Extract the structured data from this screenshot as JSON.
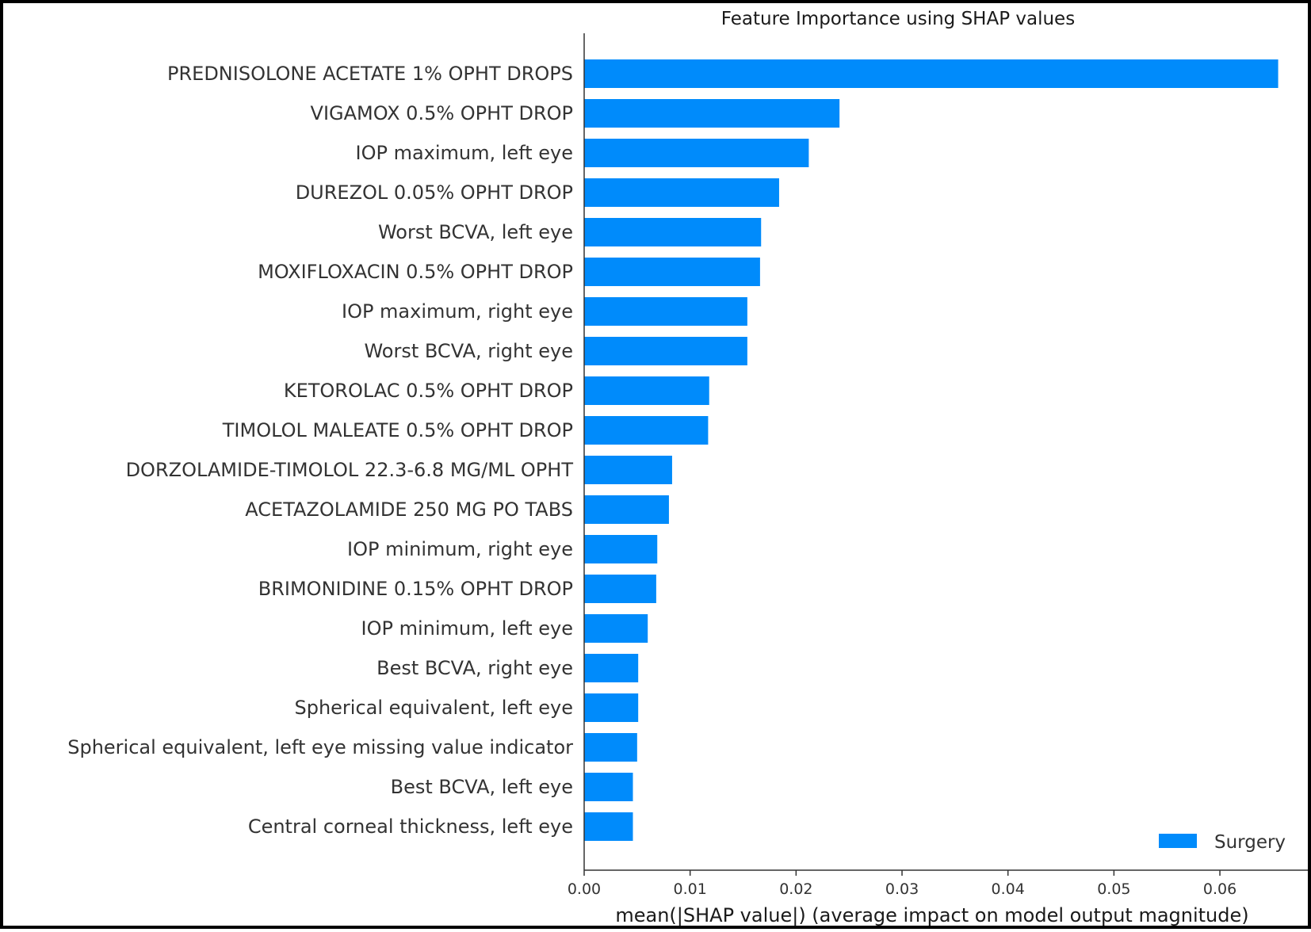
{
  "chart_data": {
    "type": "bar",
    "orientation": "horizontal",
    "title": "Feature Importance using SHAP values",
    "xlabel": "mean(|SHAP value|) (average impact on model output magnitude)",
    "ylabel": "",
    "xlim": [
      0.0,
      0.0683
    ],
    "xticks": [
      0.0,
      0.01,
      0.02,
      0.03,
      0.04,
      0.05,
      0.06
    ],
    "xtick_labels": [
      "0.00",
      "0.01",
      "0.02",
      "0.03",
      "0.04",
      "0.05",
      "0.06"
    ],
    "categories": [
      "PREDNISOLONE ACETATE 1% OPHT DROPS",
      "VIGAMOX 0.5% OPHT DROP",
      "IOP maximum, left eye",
      "DUREZOL 0.05% OPHT DROP",
      "Worst BCVA, left eye",
      "MOXIFLOXACIN 0.5% OPHT DROP",
      "IOP maximum, right eye",
      "Worst BCVA, right eye",
      "KETOROLAC 0.5% OPHT DROP",
      "TIMOLOL MALEATE 0.5% OPHT DROP",
      "DORZOLAMIDE-TIMOLOL 22.3-6.8 MG/ML OPHT",
      "ACETAZOLAMIDE 250 MG PO TABS",
      "IOP minimum, right eye",
      "BRIMONIDINE 0.15% OPHT DROP",
      "IOP minimum, left eye",
      "Best BCVA, right eye",
      "Spherical equivalent, left eye",
      "Spherical equivalent, left eye missing value indicator",
      "Best BCVA, left eye",
      "Central corneal thickness, left eye"
    ],
    "series": [
      {
        "name": "Surgery",
        "color": "#008bfb",
        "values": [
          0.0655,
          0.0241,
          0.0212,
          0.0184,
          0.0167,
          0.0166,
          0.0154,
          0.0154,
          0.0118,
          0.0117,
          0.0083,
          0.008,
          0.0069,
          0.0068,
          0.006,
          0.0051,
          0.0051,
          0.005,
          0.0046,
          0.0046
        ]
      }
    ],
    "legend": {
      "position": "bottom-right"
    },
    "grid": false,
    "axis_color": "#333333"
  }
}
